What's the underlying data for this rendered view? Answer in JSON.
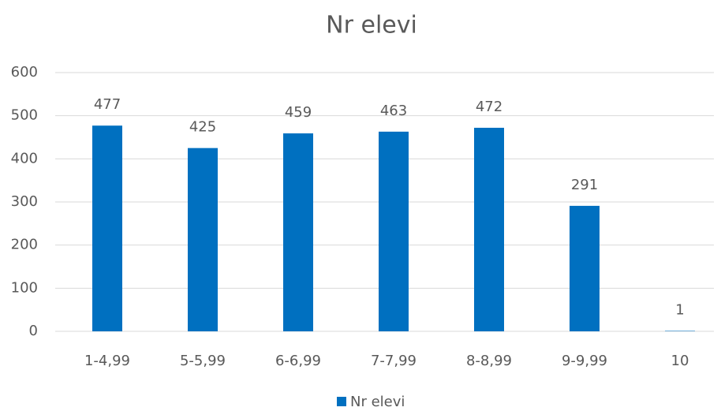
{
  "chart_data": {
    "type": "bar",
    "title": "Nr elevi",
    "categories": [
      "1-4,99",
      "5-5,99",
      "6-6,99",
      "7-7,99",
      "8-8,99",
      "9-9,99",
      "10"
    ],
    "series": [
      {
        "name": "Nr elevi",
        "color": "#0070c0",
        "values": [
          477,
          425,
          459,
          463,
          472,
          291,
          1
        ]
      }
    ],
    "ylim": [
      0,
      600
    ],
    "yticks": [
      0,
      100,
      200,
      300,
      400,
      500,
      600
    ],
    "grid": true,
    "legend": "bottom"
  }
}
